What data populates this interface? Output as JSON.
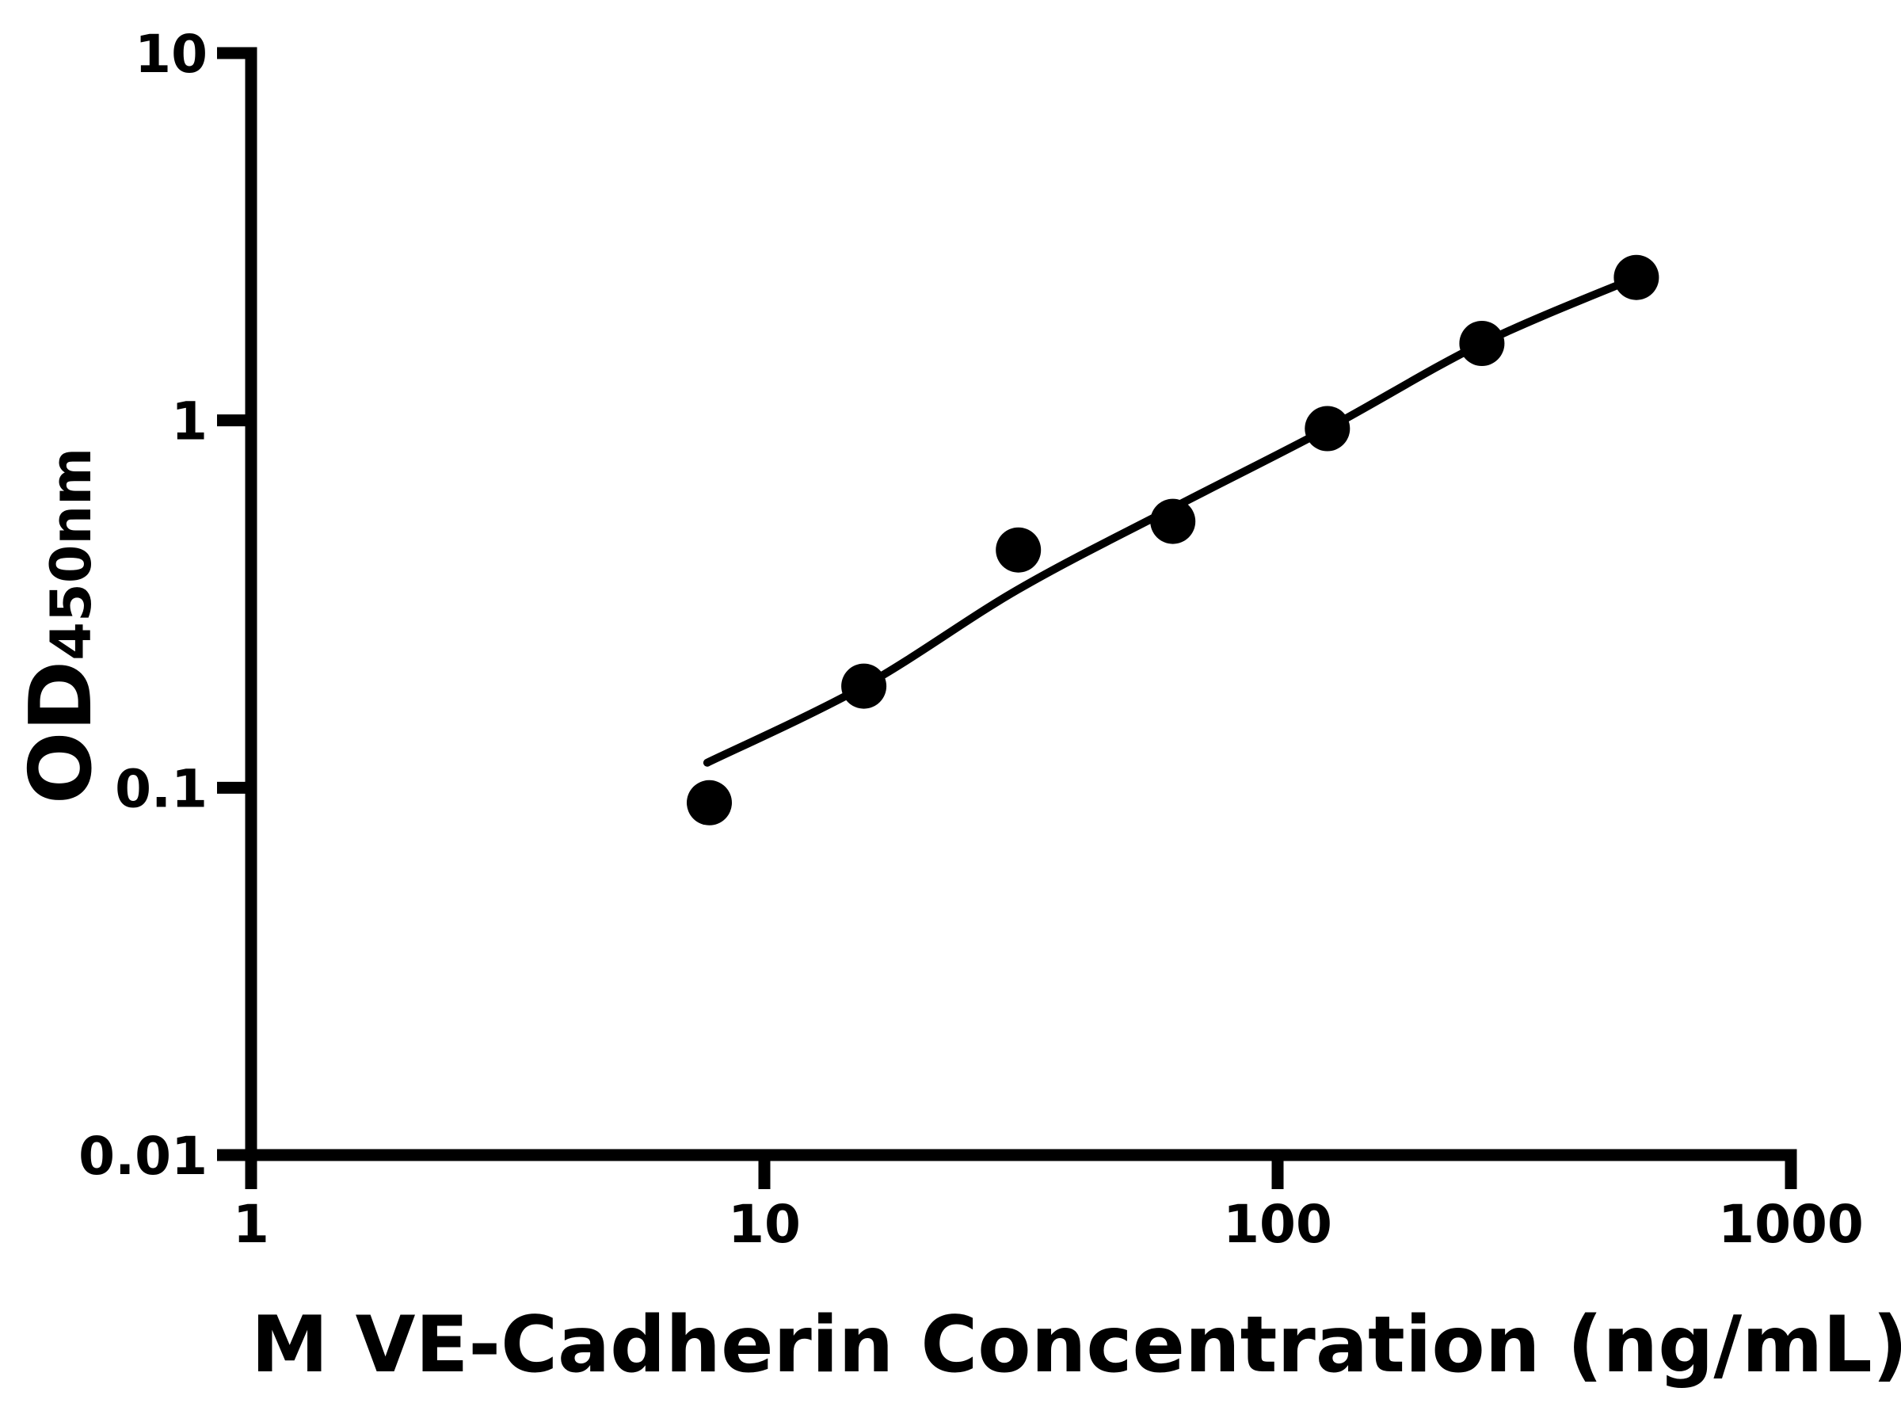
{
  "chart_data": {
    "type": "scatter",
    "title": "",
    "grid": false,
    "legend": null,
    "background_color": "#ffffff",
    "axis_color": "#000000",
    "x_axis": {
      "label": "M VE-Cadherin Concentration (ng/mL)",
      "scale": "log",
      "range": [
        1,
        1000
      ],
      "ticks": [
        {
          "value": 1,
          "label": "1"
        },
        {
          "value": 10,
          "label": "10"
        },
        {
          "value": 100,
          "label": "100"
        },
        {
          "value": 1000,
          "label": "1000"
        }
      ]
    },
    "y_axis": {
      "label_main": "OD",
      "label_subscript": "450nm",
      "scale": "log",
      "range": [
        0.01,
        10
      ],
      "ticks": [
        {
          "value": 0.01,
          "label": "0.01"
        },
        {
          "value": 0.1,
          "label": "0.1"
        },
        {
          "value": 1,
          "label": "1"
        },
        {
          "value": 10,
          "label": "10"
        }
      ]
    },
    "series": [
      {
        "name": "standard-curve-points",
        "marker": "circle",
        "marker_color": "#000000",
        "points": [
          {
            "x": 7.8125,
            "y": 0.091
          },
          {
            "x": 15.625,
            "y": 0.189
          },
          {
            "x": 31.25,
            "y": 0.444
          },
          {
            "x": 62.5,
            "y": 0.531
          },
          {
            "x": 125,
            "y": 0.95
          },
          {
            "x": 250,
            "y": 1.62
          },
          {
            "x": 500,
            "y": 2.45
          }
        ]
      }
    ],
    "fit_line": {
      "name": "standard-curve-fit",
      "color": "#000000",
      "anchors": [
        {
          "x": 7.74,
          "y": 0.117
        },
        {
          "x": 15.625,
          "y": 0.189
        },
        {
          "x": 31.25,
          "y": 0.347
        },
        {
          "x": 62.5,
          "y": 0.578
        },
        {
          "x": 125,
          "y": 0.95
        },
        {
          "x": 250,
          "y": 1.62
        },
        {
          "x": 500,
          "y": 2.45
        }
      ]
    }
  }
}
